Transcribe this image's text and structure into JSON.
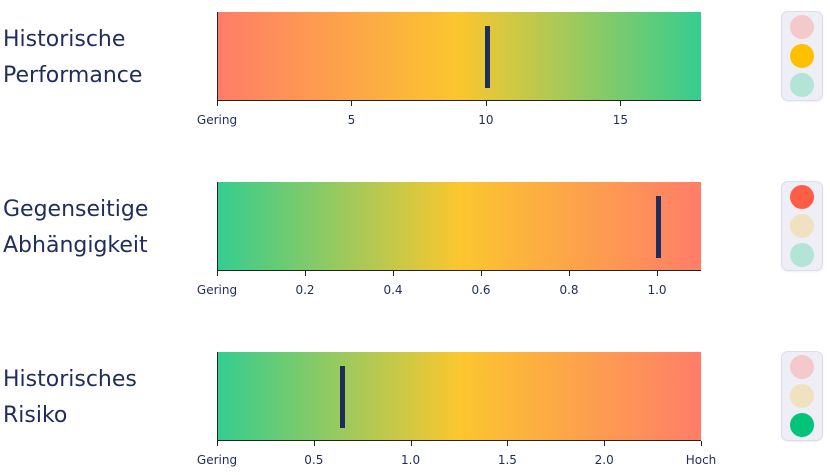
{
  "rows": [
    {
      "title_line1": "Historische",
      "title_line2": "Performance",
      "gradient": [
        "#ff7d68",
        "#fbc62e",
        "#35cd8f"
      ],
      "ticks": [
        "Gering",
        "5",
        "10",
        "15"
      ],
      "range": [
        0,
        18
      ],
      "value": 10,
      "lights": {
        "red": "#f4c9c9",
        "yellow": "#ffc000",
        "green": "#b3e4d5"
      }
    },
    {
      "title_line1": "Gegenseitige",
      "title_line2": "Abhängigkeit",
      "gradient": [
        "#35cd8f",
        "#fbc62e",
        "#ff7d68"
      ],
      "ticks": [
        "Gering",
        "0.2",
        "0.4",
        "0.6",
        "0.8",
        "1.0"
      ],
      "range": [
        0,
        1.1
      ],
      "value": 1.0,
      "lights": {
        "red": "#ff5e46",
        "yellow": "#f0e2c0",
        "green": "#b3e4d5"
      }
    },
    {
      "title_line1": "Historisches",
      "title_line2": "Risiko",
      "gradient": [
        "#35cd8f",
        "#fbc62e",
        "#ff7d68"
      ],
      "ticks": [
        "Gering",
        "0.5",
        "1.0",
        "1.5",
        "2.0",
        "Hoch"
      ],
      "range": [
        0,
        2.5
      ],
      "value": 0.64,
      "lights": {
        "red": "#f4c9c9",
        "yellow": "#f0e2c0",
        "green": "#00c479"
      }
    }
  ]
}
